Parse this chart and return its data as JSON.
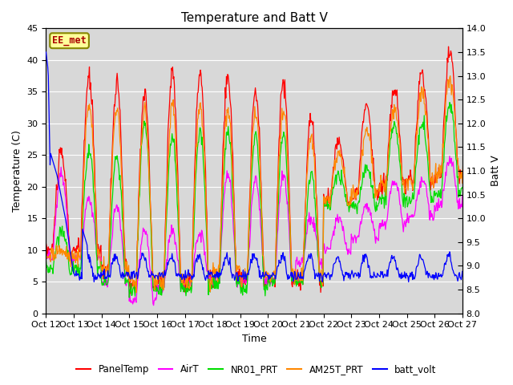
{
  "title": "Temperature and Batt V",
  "xlabel": "Time",
  "ylabel_left": "Temperature (C)",
  "ylabel_right": "Batt V",
  "annotation": "EE_met",
  "ylim_left": [
    0,
    45
  ],
  "ylim_right": [
    8.0,
    14.0
  ],
  "x_tick_labels": [
    "Oct 12",
    "Oct 13",
    "Oct 14",
    "Oct 15",
    "Oct 16",
    "Oct 17",
    "Oct 18",
    "Oct 19",
    "Oct 20",
    "Oct 21",
    "Oct 22",
    "Oct 23",
    "Oct 24",
    "Oct 25",
    "Oct 26",
    "Oct 27"
  ],
  "legend_labels": [
    "PanelTemp",
    "AirT",
    "NR01_PRT",
    "AM25T_PRT",
    "batt_volt"
  ],
  "legend_colors": [
    "#ff0000",
    "#ff00ff",
    "#00cc00",
    "#ff8800",
    "#0000ff"
  ],
  "title_fontsize": 11,
  "axis_fontsize": 9,
  "tick_fontsize": 8,
  "panel_temp_peaks": [
    25,
    37,
    36,
    35,
    38,
    38,
    37,
    35,
    37,
    31,
    27,
    33,
    35,
    38,
    41,
    41
  ],
  "panel_temp_mins": [
    10,
    10,
    7,
    4,
    5,
    5,
    6,
    5,
    5,
    5,
    18,
    19,
    20,
    21,
    22,
    22
  ],
  "air_temp_peaks": [
    22,
    18,
    17,
    13,
    13,
    13,
    22,
    21,
    22,
    15,
    15,
    17,
    21,
    21,
    24,
    22
  ],
  "air_temp_mins": [
    9,
    9,
    5,
    2,
    4,
    5,
    5,
    5,
    5,
    8,
    10,
    12,
    14,
    15,
    17,
    18
  ],
  "nr01_peaks": [
    13,
    26,
    25,
    30,
    28,
    29,
    29,
    28,
    28,
    22,
    22,
    23,
    30,
    30,
    33,
    28
  ],
  "nr01_mins": [
    7,
    7,
    5,
    4,
    4,
    4,
    5,
    4,
    5,
    5,
    17,
    17,
    18,
    18,
    19,
    19
  ],
  "am25t_peaks": [
    10,
    33,
    32,
    32,
    33,
    33,
    32,
    32,
    32,
    28,
    25,
    29,
    32,
    35,
    37,
    37
  ],
  "am25t_mins": [
    9,
    9,
    7,
    5,
    5,
    5,
    7,
    6,
    6,
    6,
    18,
    19,
    20,
    21,
    22,
    22
  ]
}
